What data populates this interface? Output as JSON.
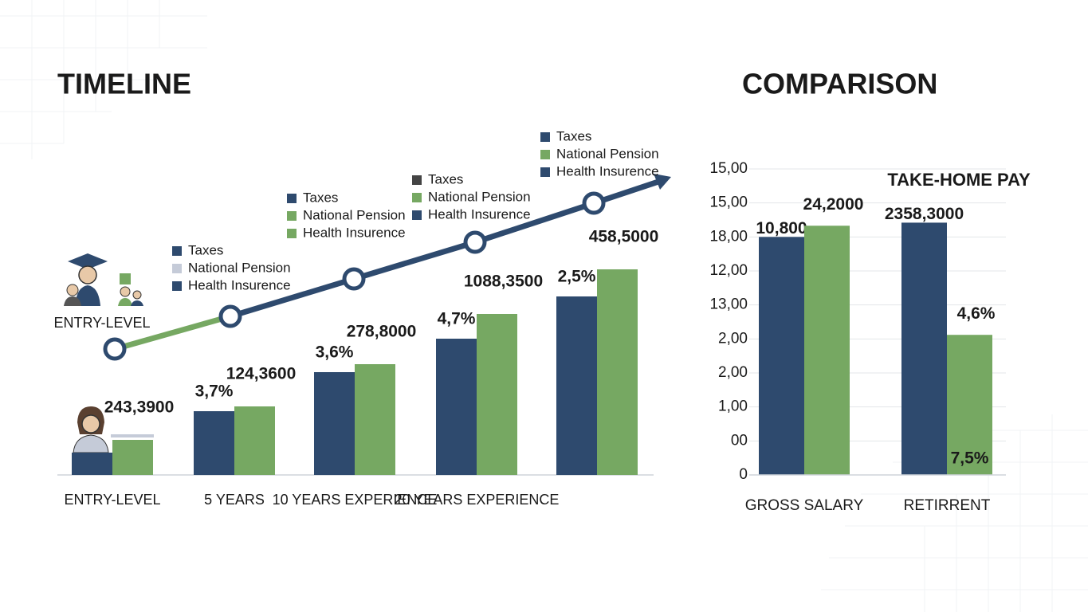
{
  "chart_data": [
    {
      "type": "bar",
      "title": "TIMELINE",
      "categories": [
        "ENTRY-LEVEL",
        "5 YEARS",
        "10 YEARS EXPERIENCE",
        "20 YEARS EXPERIENCE",
        null
      ],
      "series": [
        {
          "color": "#2e4a6e",
          "values": [
            28,
            80,
            129,
            171,
            224
          ],
          "bar_labels": [
            null,
            "3,7%",
            "3,6%",
            "4,7%",
            "2,5%"
          ]
        },
        {
          "color": "#76a862",
          "values": [
            44,
            86,
            139,
            202,
            258
          ],
          "bar_labels": [
            "243,3900",
            "124,3600",
            "278,8000",
            "1088,3500",
            "458,5000"
          ]
        }
      ],
      "ylim": [
        0,
        300
      ],
      "legends": [
        [
          {
            "label": "Taxes",
            "color": "#2e4a6e"
          },
          {
            "label": "National Pension",
            "color": "#c5cbd8"
          },
          {
            "label": "Health Insurence",
            "color": "#2e4a6e"
          }
        ],
        [
          {
            "label": "Taxes",
            "color": "#2e4a6e"
          },
          {
            "label": "National Pension",
            "color": "#76a862"
          },
          {
            "label": "Health Insurence",
            "color": "#76a862"
          }
        ],
        [
          {
            "label": "Taxes",
            "color": "#444444"
          },
          {
            "label": "National Pension",
            "color": "#76a862"
          },
          {
            "label": "Health Insurence",
            "color": "#2e4a6e"
          }
        ],
        [
          {
            "label": "Taxes",
            "color": "#2e4a6e"
          },
          {
            "label": "National Pension",
            "color": "#76a862"
          },
          {
            "label": "Health Insurence",
            "color": "#2e4a6e"
          }
        ]
      ],
      "annotations": [
        "ENTRY-LEVEL"
      ]
    },
    {
      "type": "bar",
      "title": "COMPARISON",
      "categories": [
        "GROSS SALARY",
        "RETIRRENT"
      ],
      "series": [
        {
          "color": "#2e4a6e",
          "values": [
            7.0,
            7.42
          ],
          "bar_labels": [
            "10,800",
            "2358,3000"
          ],
          "inner_labels": [
            null,
            null
          ]
        },
        {
          "color": "#76a862",
          "values": [
            7.33,
            4.12
          ],
          "bar_labels": [
            "24,2000",
            "4,6%"
          ],
          "inner_labels": [
            null,
            "7,5%"
          ]
        }
      ],
      "ylim": [
        0,
        9
      ],
      "yticks": [
        0,
        {
          "value": 1,
          "label": "00"
        },
        {
          "value": 2,
          "label": "1,00"
        },
        {
          "value": 3,
          "label": "2,00"
        },
        {
          "value": 4,
          "label": "2,00"
        },
        {
          "value": 5,
          "label": "13,00"
        },
        {
          "value": 6,
          "label": "12,00"
        },
        {
          "value": 7,
          "label": "18,00"
        },
        {
          "value": 8,
          "label": "15,00"
        },
        {
          "value": 9,
          "label": "15,00"
        }
      ],
      "grid": true,
      "annotations": [
        "TAKE-HOME PAY"
      ]
    }
  ]
}
